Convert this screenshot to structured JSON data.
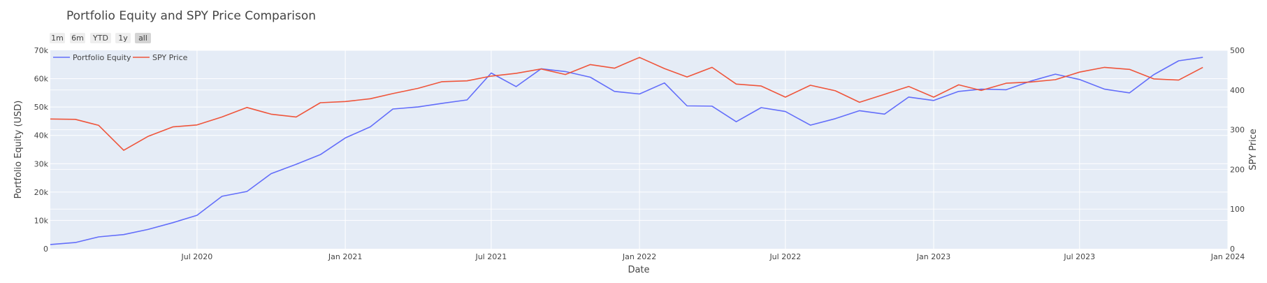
{
  "chart_data": {
    "type": "line",
    "title": "Portfolio Equity and SPY Price Comparison",
    "xlabel": "Date",
    "ylabel_left": "Portfolio Equity (USD)",
    "ylabel_right": "SPY Price",
    "x_range": [
      "2020-01-01",
      "2024-01-01"
    ],
    "y_left_range": [
      0,
      70000
    ],
    "y_right_range": [
      0,
      500
    ],
    "y_left_ticks": [
      {
        "value": 0,
        "label": "0"
      },
      {
        "value": 10000,
        "label": "10k"
      },
      {
        "value": 20000,
        "label": "20k"
      },
      {
        "value": 30000,
        "label": "30k"
      },
      {
        "value": 40000,
        "label": "40k"
      },
      {
        "value": 50000,
        "label": "50k"
      },
      {
        "value": 60000,
        "label": "60k"
      },
      {
        "value": 70000,
        "label": "70k"
      }
    ],
    "y_right_ticks": [
      {
        "value": 0,
        "label": "0"
      },
      {
        "value": 100,
        "label": "100"
      },
      {
        "value": 200,
        "label": "200"
      },
      {
        "value": 300,
        "label": "300"
      },
      {
        "value": 400,
        "label": "400"
      },
      {
        "value": 500,
        "label": "500"
      }
    ],
    "x_ticks": [
      {
        "value": "2020-07-01",
        "label": "Jul 2020"
      },
      {
        "value": "2021-01-01",
        "label": "Jan 2021"
      },
      {
        "value": "2021-07-01",
        "label": "Jul 2021"
      },
      {
        "value": "2022-01-01",
        "label": "Jan 2022"
      },
      {
        "value": "2022-07-01",
        "label": "Jul 2022"
      },
      {
        "value": "2023-01-01",
        "label": "Jan 2023"
      },
      {
        "value": "2023-07-01",
        "label": "Jul 2023"
      },
      {
        "value": "2024-01-01",
        "label": "Jan 2024"
      }
    ],
    "x": [
      "2020-01-01",
      "2020-02-01",
      "2020-03-01",
      "2020-04-01",
      "2020-05-01",
      "2020-06-01",
      "2020-07-01",
      "2020-08-01",
      "2020-09-01",
      "2020-10-01",
      "2020-11-01",
      "2020-12-01",
      "2021-01-01",
      "2021-02-01",
      "2021-03-01",
      "2021-04-01",
      "2021-05-01",
      "2021-06-01",
      "2021-07-01",
      "2021-08-01",
      "2021-09-01",
      "2021-10-01",
      "2021-11-01",
      "2021-12-01",
      "2022-01-01",
      "2022-02-01",
      "2022-03-01",
      "2022-04-01",
      "2022-05-01",
      "2022-06-01",
      "2022-07-01",
      "2022-08-01",
      "2022-09-01",
      "2022-10-01",
      "2022-11-01",
      "2022-12-01",
      "2023-01-01",
      "2023-02-01",
      "2023-03-01",
      "2023-04-01",
      "2023-05-01",
      "2023-06-01",
      "2023-07-01",
      "2023-08-01",
      "2023-09-01",
      "2023-10-01",
      "2023-11-01",
      "2023-12-01",
      "2024-01-01"
    ],
    "series": [
      {
        "name": "Portfolio Equity",
        "axis": "left",
        "color": "#636efa",
        "values": [
          1500,
          2200,
          4200,
          5000,
          6800,
          9200,
          11800,
          18500,
          20200,
          26500,
          29800,
          33200,
          39100,
          43000,
          49300,
          50000,
          51300,
          52500,
          62000,
          57200,
          63500,
          62500,
          60500,
          55500,
          54600,
          58500,
          50400,
          50300,
          44800,
          49800,
          48400,
          43600,
          45900,
          48700,
          47500,
          53500,
          52300,
          55500,
          56300,
          56100,
          59100,
          61600,
          59700,
          56300,
          55000,
          61400,
          66300,
          67500,
          null
        ],
        "values_note": ""
      },
      {
        "name": "SPY Price",
        "axis": "right",
        "color": "#ef553b",
        "values": [
          327,
          326,
          311,
          248,
          283,
          307,
          312,
          332,
          356,
          339,
          332,
          368,
          371,
          378,
          391,
          404,
          421,
          423,
          435,
          442,
          453,
          439,
          464,
          455,
          482,
          454,
          433,
          457,
          415,
          410,
          382,
          412,
          398,
          369,
          389,
          409,
          382,
          413,
          399,
          417,
          420,
          426,
          445,
          457,
          452,
          428,
          425,
          457,
          null
        ]
      }
    ],
    "legend": {
      "placement": "top-left",
      "items": [
        "Portfolio Equity",
        "SPY Price"
      ]
    },
    "grid": true,
    "plot_bg": "#e5ecf6",
    "range_buttons": [
      {
        "label": "1m",
        "active": false
      },
      {
        "label": "6m",
        "active": false
      },
      {
        "label": "YTD",
        "active": false
      },
      {
        "label": "1y",
        "active": false
      },
      {
        "label": "all",
        "active": true
      }
    ]
  }
}
